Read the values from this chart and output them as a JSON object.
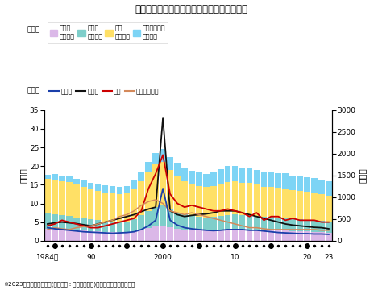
{
  "title": "県内公立学校教員採用試験の志願者数と倍率",
  "footnote": "※2023年度の志願倍率は(出願者数÷採用予定者数)で算出。年度は採用年度",
  "years": [
    1984,
    1985,
    1986,
    1987,
    1988,
    1989,
    1990,
    1991,
    1992,
    1993,
    1994,
    1995,
    1996,
    1997,
    1998,
    1999,
    2000,
    2001,
    2002,
    2003,
    2004,
    2005,
    2006,
    2007,
    2008,
    2009,
    2010,
    2011,
    2012,
    2013,
    2014,
    2015,
    2016,
    2017,
    2018,
    2019,
    2020,
    2021,
    2022,
    2023
  ],
  "bar_elementary": [
    280,
    270,
    265,
    255,
    240,
    230,
    220,
    210,
    200,
    200,
    195,
    200,
    220,
    260,
    300,
    340,
    350,
    310,
    280,
    260,
    250,
    240,
    230,
    240,
    250,
    260,
    260,
    255,
    255,
    250,
    240,
    240,
    235,
    230,
    220,
    215,
    210,
    205,
    200,
    190
  ],
  "bar_middle": [
    340,
    330,
    320,
    310,
    290,
    280,
    270,
    260,
    250,
    245,
    240,
    248,
    280,
    330,
    390,
    440,
    460,
    410,
    370,
    340,
    320,
    310,
    300,
    310,
    320,
    335,
    340,
    330,
    330,
    320,
    305,
    305,
    295,
    295,
    280,
    275,
    270,
    265,
    255,
    250
  ],
  "bar_high": [
    800,
    810,
    790,
    780,
    760,
    730,
    700,
    680,
    660,
    640,
    630,
    640,
    700,
    780,
    900,
    980,
    1000,
    900,
    820,
    770,
    730,
    710,
    700,
    710,
    730,
    760,
    760,
    740,
    740,
    720,
    695,
    695,
    680,
    680,
    660,
    650,
    640,
    630,
    615,
    595
  ],
  "bar_special": [
    100,
    115,
    125,
    130,
    135,
    140,
    145,
    155,
    160,
    165,
    170,
    175,
    185,
    200,
    230,
    260,
    290,
    310,
    320,
    310,
    305,
    305,
    310,
    325,
    345,
    360,
    360,
    350,
    345,
    340,
    330,
    335,
    340,
    340,
    340,
    340,
    345,
    345,
    335,
    330
  ],
  "line_elementary": [
    3.5,
    3.2,
    3.0,
    2.8,
    2.6,
    2.4,
    2.3,
    2.2,
    2.1,
    2.0,
    2.1,
    2.2,
    2.4,
    3.0,
    4.0,
    5.5,
    14.0,
    5.5,
    4.2,
    3.5,
    3.2,
    3.0,
    2.8,
    2.7,
    2.8,
    3.0,
    3.0,
    3.0,
    2.8,
    2.8,
    2.6,
    2.4,
    2.2,
    2.1,
    2.0,
    1.9,
    1.9,
    1.8,
    1.8,
    1.7
  ],
  "line_middle": [
    4.5,
    4.8,
    5.0,
    4.8,
    4.6,
    4.3,
    4.0,
    4.5,
    5.0,
    5.5,
    6.0,
    6.5,
    7.0,
    7.8,
    8.5,
    9.0,
    33.0,
    8.0,
    7.0,
    6.5,
    6.8,
    7.0,
    7.2,
    7.5,
    8.0,
    8.0,
    8.0,
    7.5,
    7.0,
    6.5,
    6.0,
    5.5,
    5.0,
    4.5,
    4.2,
    4.0,
    3.8,
    3.6,
    3.5,
    3.2
  ],
  "line_high": [
    4.0,
    4.5,
    5.5,
    5.0,
    4.5,
    4.0,
    3.5,
    3.5,
    4.0,
    4.5,
    5.0,
    5.5,
    6.0,
    8.0,
    14.0,
    18.0,
    23.0,
    12.5,
    10.0,
    9.0,
    9.5,
    9.0,
    8.5,
    8.0,
    8.0,
    8.5,
    8.0,
    7.5,
    6.5,
    7.5,
    5.5,
    6.5,
    6.5,
    5.5,
    6.0,
    5.5,
    5.5,
    5.5,
    5.0,
    5.0
  ],
  "line_special": [
    3.0,
    3.5,
    3.2,
    3.0,
    3.5,
    3.8,
    4.0,
    4.5,
    5.0,
    5.5,
    6.5,
    7.0,
    8.0,
    9.5,
    10.5,
    11.0,
    10.0,
    8.0,
    7.5,
    7.0,
    7.5,
    7.0,
    6.5,
    6.0,
    5.5,
    5.0,
    4.5,
    4.0,
    3.5,
    3.5,
    3.2,
    3.0,
    3.0,
    3.0,
    3.0,
    3.0,
    3.0,
    3.0,
    2.8,
    2.8
  ],
  "bar_colors": {
    "elementary": "#dbb8e8",
    "middle": "#7ececa",
    "high": "#ffe066",
    "special": "#7dd4f5"
  },
  "line_colors": {
    "elementary": "#1a3faa",
    "middle": "#111111",
    "high": "#cc0000",
    "special": "#d4895a"
  },
  "ylabel_left": "（倍）",
  "ylabel_right": "（人）",
  "ylim_left": [
    0,
    35
  ],
  "ylim_right": [
    0,
    3000
  ],
  "yticks_left": [
    0,
    5,
    10,
    15,
    20,
    25,
    30,
    35
  ],
  "yticks_right": [
    0,
    500,
    1000,
    1500,
    2000,
    2500,
    3000
  ],
  "xtick_labels": [
    "1984年",
    "90",
    "2000",
    "10",
    "20",
    "23"
  ],
  "xtick_positions": [
    1984,
    1990,
    2000,
    2010,
    2020,
    2023
  ],
  "legend_bars": [
    "小学校\n志願者数",
    "中学校\n志願者数",
    "高校\n志願者数",
    "特別支援学校\n志願者数"
  ],
  "legend_lines": [
    "小学校",
    "中学校",
    "高校",
    "特別支援学校"
  ]
}
